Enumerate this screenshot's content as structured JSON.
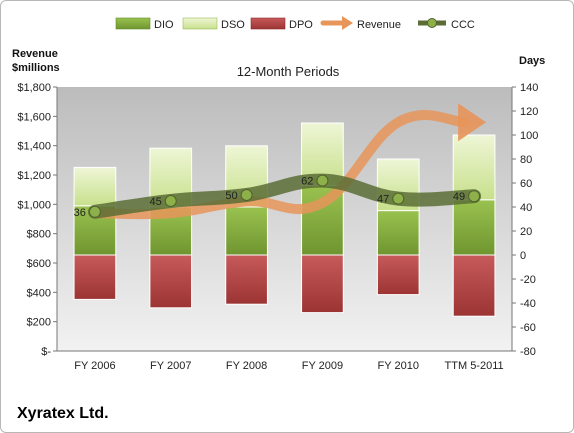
{
  "chart_data": {
    "type": "bar",
    "subtitle": "12-Month Periods",
    "company": "Xyratex Ltd.",
    "left_axis_title_line1": "Revenue",
    "left_axis_title_line2": "$millions",
    "right_axis_title": "Days",
    "categories": [
      "FY 2006",
      "FY 2007",
      "FY 2008",
      "FY 2009",
      "FY 2010",
      "TTM 5-2011"
    ],
    "left_axis": {
      "range": [
        0,
        1800
      ],
      "ticks": [
        0,
        200,
        400,
        600,
        800,
        1000,
        1200,
        1400,
        1600,
        1800
      ],
      "tick_labels": [
        "$-",
        "$200",
        "$400",
        "$600",
        "$800",
        "$1,000",
        "$1,200",
        "$1,400",
        "$1,600",
        "$1,800"
      ]
    },
    "right_axis": {
      "range": [
        -80,
        140
      ],
      "ticks": [
        -80,
        -60,
        -40,
        -20,
        0,
        20,
        40,
        60,
        80,
        100,
        120,
        140
      ],
      "tick_labels": [
        "-80",
        "-60",
        "-40",
        "-20",
        "0",
        "20",
        "40",
        "60",
        "80",
        "100",
        "120",
        "140"
      ]
    },
    "series": [
      {
        "name": "DIO",
        "kind": "stacked-bar",
        "axis": "right",
        "color": "#7ea437",
        "values": [
          41,
          40,
          40,
          58,
          37,
          46
        ]
      },
      {
        "name": "DSO",
        "kind": "stacked-bar",
        "axis": "right",
        "color": "#d6eaa8",
        "values": [
          32,
          49,
          51,
          52,
          43,
          54
        ]
      },
      {
        "name": "DPO",
        "kind": "bar-below-zero",
        "axis": "right",
        "color": "#b54343",
        "values": [
          37,
          44,
          41,
          48,
          33,
          51
        ]
      },
      {
        "name": "Revenue",
        "kind": "arrow",
        "axis": "left",
        "color": "#e8955a",
        "values": [
          940,
          940,
          1020,
          1010,
          1560,
          1560
        ]
      },
      {
        "name": "CCC",
        "kind": "line",
        "axis": "right",
        "color": "#5b6d35",
        "values": [
          36,
          45,
          50,
          62,
          47,
          49
        ]
      }
    ],
    "ccc_labels": [
      "36",
      "45",
      "50",
      "62",
      "47",
      "49"
    ],
    "legend_position": "top",
    "grid": false
  }
}
